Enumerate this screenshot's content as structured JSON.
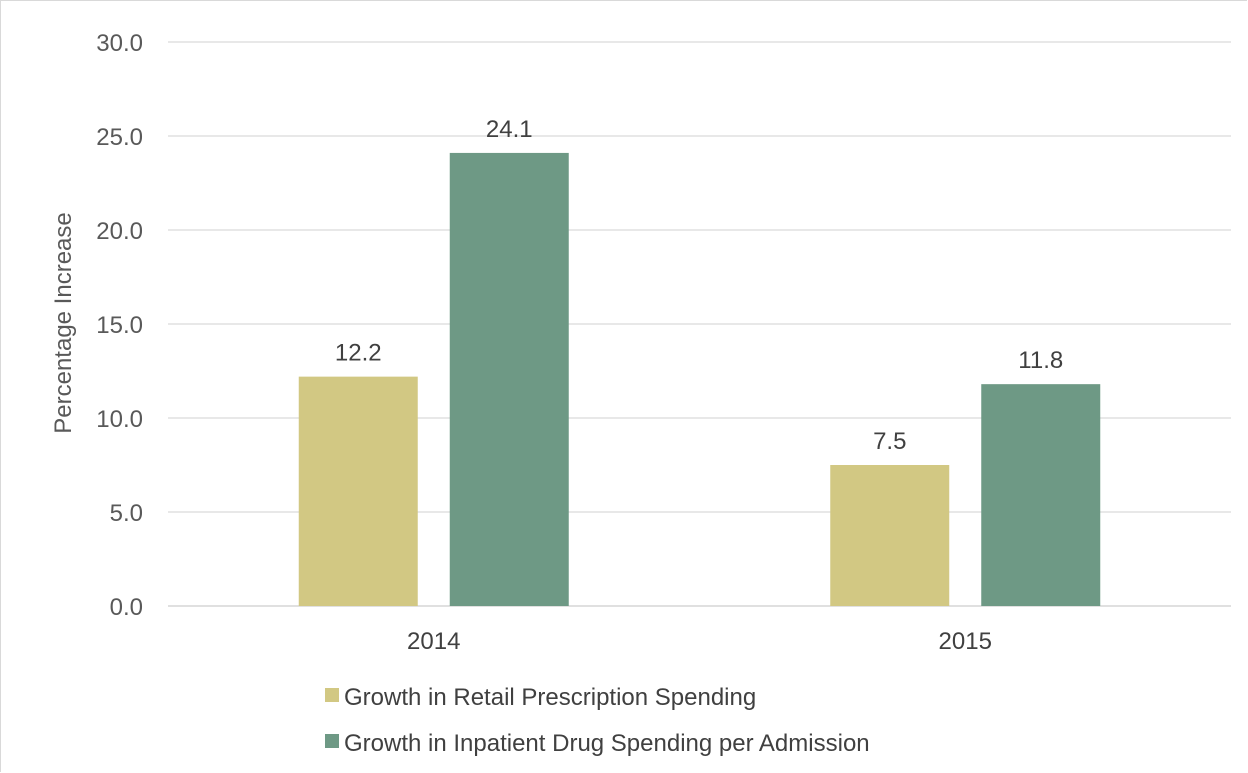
{
  "chart_data": {
    "type": "bar",
    "title": "",
    "xlabel": "",
    "ylabel": "Percentage Increase",
    "ylim": [
      0,
      30
    ],
    "yticks": [
      "0.0",
      "5.0",
      "10.0",
      "15.0",
      "20.0",
      "25.0",
      "30.0"
    ],
    "categories": [
      "2014",
      "2015"
    ],
    "series": [
      {
        "name": "Growth in Retail Prescription Spending",
        "values": [
          12.2,
          7.5
        ],
        "labels": [
          "12.2",
          "7.5"
        ],
        "color": "#d2c883"
      },
      {
        "name": "Growth in Inpatient Drug Spending per Admission",
        "values": [
          24.1,
          11.8
        ],
        "labels": [
          "24.1",
          "11.8"
        ],
        "color": "#6e9985"
      }
    ],
    "grid": true,
    "legend": "bottom-left"
  }
}
